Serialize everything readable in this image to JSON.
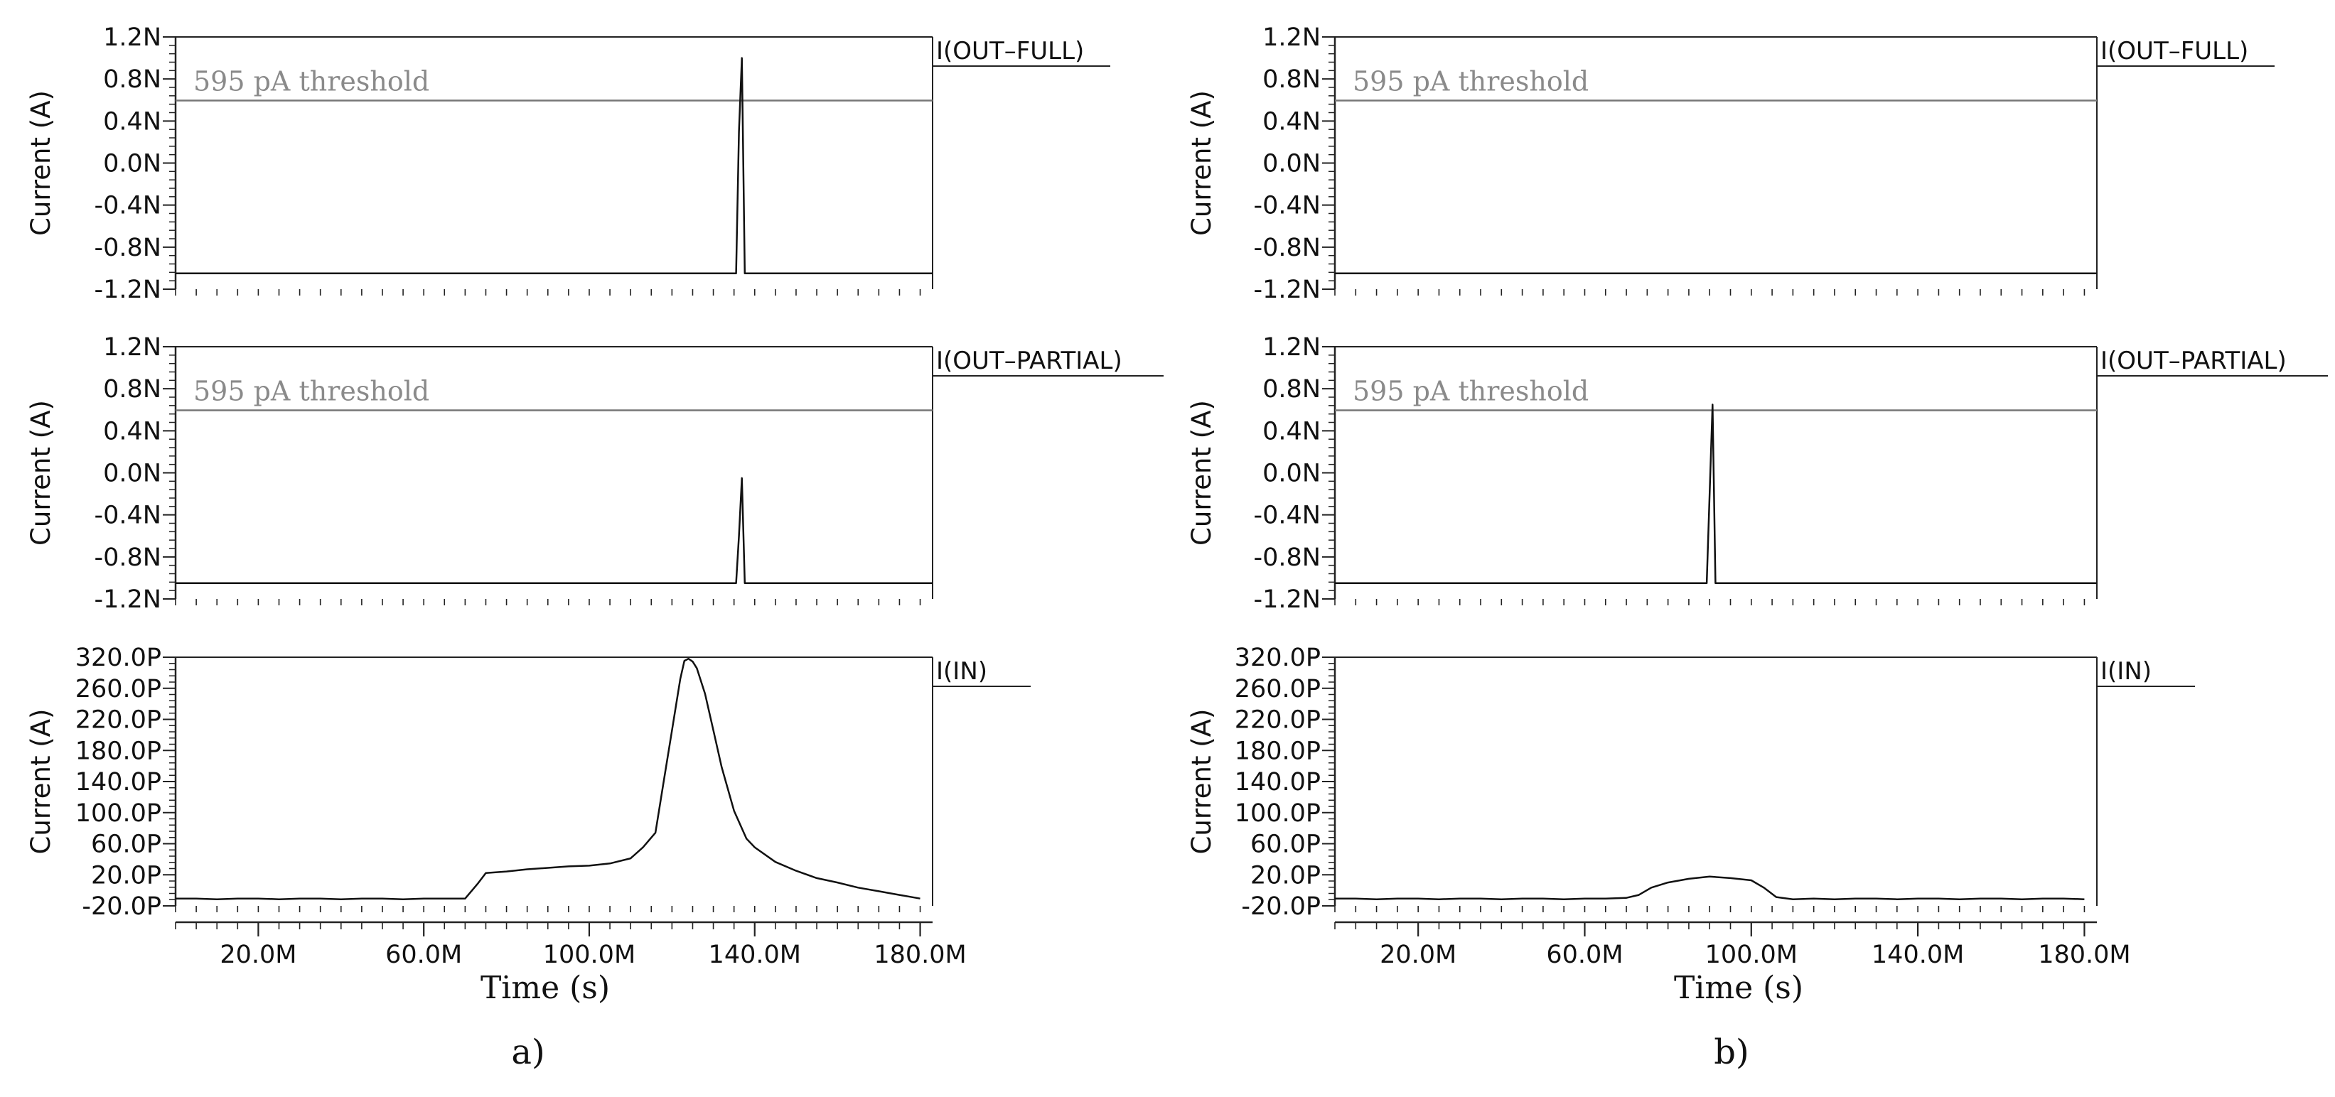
{
  "figure": {
    "columns": [
      {
        "panel_label": "a)",
        "x_axis": {
          "label": "Time (s)",
          "tick_labels": [
            "20.0M",
            "60.0M",
            "100.0M",
            "140.0M",
            "180.0M"
          ]
        },
        "plots": [
          {
            "trace_label": "I(OUT–FULL)",
            "y_label": "Current (A)",
            "y_tick_labels": [
              "1.2N",
              "0.8N",
              "0.4N",
              "0.0N",
              "-0.4N",
              "-0.8N",
              "-1.2N"
            ],
            "threshold_label": "595 pA threshold"
          },
          {
            "trace_label": "I(OUT–PARTIAL)",
            "y_label": "Current (A)",
            "y_tick_labels": [
              "1.2N",
              "0.8N",
              "0.4N",
              "0.0N",
              "-0.4N",
              "-0.8N",
              "-1.2N"
            ],
            "threshold_label": "595 pA threshold"
          },
          {
            "trace_label": "I(IN)",
            "y_label": "Current (A)",
            "y_tick_labels": [
              "320.0P",
              "260.0P",
              "220.0P",
              "180.0P",
              "140.0P",
              "100.0P",
              "60.0P",
              "20.0P",
              "-20.0P"
            ]
          }
        ]
      },
      {
        "panel_label": "b)",
        "x_axis": {
          "label": "Time (s)",
          "tick_labels": [
            "20.0M",
            "60.0M",
            "100.0M",
            "140.0M",
            "180.0M"
          ]
        },
        "plots": [
          {
            "trace_label": "I(OUT–FULL)",
            "y_label": "Current (A)",
            "y_tick_labels": [
              "1.2N",
              "0.8N",
              "0.4N",
              "0.0N",
              "-0.4N",
              "-0.8N",
              "-1.2N"
            ],
            "threshold_label": "595 pA threshold"
          },
          {
            "trace_label": "I(OUT–PARTIAL)",
            "y_label": "Current (A)",
            "y_tick_labels": [
              "1.2N",
              "0.8N",
              "0.4N",
              "0.0N",
              "-0.4N",
              "-0.8N",
              "-1.2N"
            ],
            "threshold_label": "595 pA threshold"
          },
          {
            "trace_label": "I(IN)",
            "y_label": "Current (A)",
            "y_tick_labels": [
              "320.0P",
              "260.0P",
              "220.0P",
              "180.0P",
              "140.0P",
              "100.0P",
              "60.0P",
              "20.0P",
              "-20.0P"
            ]
          }
        ]
      }
    ]
  },
  "colors": {
    "trace": "#111111",
    "threshold": "#777777",
    "threshold_text": "#8a8a8a",
    "axis": "#222222"
  },
  "chart_data": [
    {
      "panel": "a)",
      "type": "line",
      "title": "I(OUT–FULL)",
      "xlabel": "Time (s)",
      "ylabel": "Current (A)",
      "xlim": [
        0,
        183
      ],
      "x_unit": "M",
      "ylim": [
        -1.2,
        1.2
      ],
      "y_unit": "N",
      "threshold": 0.595,
      "series": [
        {
          "name": "I(OUT–FULL)",
          "x": [
            0,
            135.5,
            136.2,
            136.9,
            137.6,
            183
          ],
          "y": [
            -1.05,
            -1.05,
            0.3,
            1.0,
            -1.05,
            -1.05
          ]
        }
      ]
    },
    {
      "panel": "a)",
      "type": "line",
      "title": "I(OUT–PARTIAL)",
      "xlabel": "Time (s)",
      "ylabel": "Current (A)",
      "xlim": [
        0,
        183
      ],
      "x_unit": "M",
      "ylim": [
        -1.2,
        1.2
      ],
      "y_unit": "N",
      "threshold": 0.595,
      "series": [
        {
          "name": "I(OUT–PARTIAL)",
          "x": [
            0,
            135.5,
            136.2,
            136.9,
            137.6,
            183
          ],
          "y": [
            -1.05,
            -1.05,
            -0.6,
            -0.05,
            -1.05,
            -1.05
          ]
        }
      ]
    },
    {
      "panel": "a)",
      "type": "line",
      "title": "I(IN)",
      "xlabel": "Time (s)",
      "ylabel": "Current (A)",
      "xlim": [
        0,
        183
      ],
      "x_unit": "M",
      "ylim": [
        -20,
        320
      ],
      "y_unit": "P",
      "series": [
        {
          "name": "I(IN)",
          "x": [
            0,
            5,
            10,
            15,
            20,
            25,
            30,
            35,
            40,
            45,
            50,
            55,
            60,
            65,
            70,
            73,
            75,
            80,
            85,
            90,
            95,
            100,
            105,
            110,
            113,
            116,
            118,
            120,
            122,
            123,
            124,
            125,
            126,
            128,
            130,
            132,
            135,
            138,
            140,
            145,
            150,
            155,
            160,
            165,
            170,
            175,
            180
          ],
          "y": [
            -10,
            -10,
            -11,
            -10,
            -10,
            -11,
            -10,
            -10,
            -11,
            -10,
            -10,
            -11,
            -10,
            -10,
            -10,
            10,
            25,
            27,
            30,
            32,
            34,
            35,
            38,
            45,
            60,
            80,
            150,
            220,
            290,
            315,
            318,
            314,
            305,
            270,
            220,
            170,
            110,
            72,
            60,
            40,
            28,
            18,
            12,
            5,
            0,
            -5,
            -10
          ]
        }
      ]
    },
    {
      "panel": "b)",
      "type": "line",
      "title": "I(OUT–FULL)",
      "xlabel": "Time (s)",
      "ylabel": "Current (A)",
      "xlim": [
        0,
        183
      ],
      "x_unit": "M",
      "ylim": [
        -1.2,
        1.2
      ],
      "y_unit": "N",
      "threshold": 0.595,
      "series": [
        {
          "name": "I(OUT–FULL)",
          "x": [
            0,
            183
          ],
          "y": [
            -1.05,
            -1.05
          ]
        }
      ]
    },
    {
      "panel": "b)",
      "type": "line",
      "title": "I(OUT–PARTIAL)",
      "xlabel": "Time (s)",
      "ylabel": "Current (A)",
      "xlim": [
        0,
        183
      ],
      "x_unit": "M",
      "ylim": [
        -1.2,
        1.2
      ],
      "y_unit": "N",
      "threshold": 0.595,
      "series": [
        {
          "name": "I(OUT–PARTIAL)",
          "x": [
            0,
            89.3,
            90.0,
            90.7,
            91.4,
            183
          ],
          "y": [
            -1.05,
            -1.05,
            -0.2,
            0.65,
            -1.05,
            -1.05
          ]
        }
      ]
    },
    {
      "panel": "b)",
      "type": "line",
      "title": "I(IN)",
      "xlabel": "Time (s)",
      "ylabel": "Current (A)",
      "xlim": [
        0,
        183
      ],
      "x_unit": "M",
      "ylim": [
        -20,
        320
      ],
      "y_unit": "P",
      "series": [
        {
          "name": "I(IN)",
          "x": [
            0,
            5,
            10,
            15,
            20,
            25,
            30,
            35,
            40,
            45,
            50,
            55,
            60,
            65,
            70,
            73,
            76,
            80,
            85,
            90,
            95,
            100,
            103,
            106,
            110,
            115,
            120,
            125,
            130,
            135,
            140,
            145,
            150,
            155,
            160,
            165,
            170,
            175,
            180
          ],
          "y": [
            -10,
            -10,
            -11,
            -10,
            -10,
            -11,
            -10,
            -10,
            -11,
            -10,
            -10,
            -11,
            -10,
            -10,
            -9,
            -5,
            5,
            12,
            17,
            20,
            18,
            15,
            5,
            -8,
            -11,
            -10,
            -11,
            -10,
            -10,
            -11,
            -10,
            -10,
            -11,
            -10,
            -10,
            -11,
            -10,
            -10,
            -11
          ]
        }
      ]
    }
  ]
}
